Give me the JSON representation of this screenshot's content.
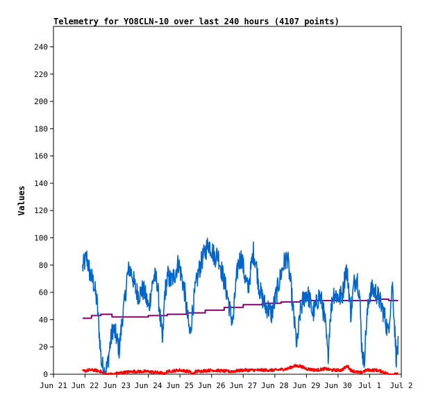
{
  "chart_data": {
    "type": "line",
    "title": "Telemetry for YO8CLN-10 over last 240 hours (4107 points)",
    "xlabel": "",
    "ylabel": "Values",
    "x_ticks": [
      "Jun 21",
      "Jun 22",
      "Jun 23",
      "Jun 24",
      "Jun 25",
      "Jun 26",
      "Jun 27",
      "Jun 28",
      "Jun 29",
      "Jun 30",
      "Jul 1",
      "Jul 2"
    ],
    "xlim_days": [
      0,
      11
    ],
    "y_ticks": [
      0,
      20,
      40,
      60,
      80,
      100,
      120,
      140,
      160,
      180,
      200,
      220,
      240
    ],
    "ylim": [
      0,
      255
    ],
    "grid": false,
    "legend": "none",
    "series": [
      {
        "color": "#0066cc",
        "style": "noisy",
        "points": [
          [
            0.92,
            78
          ],
          [
            1.05,
            86
          ],
          [
            1.15,
            74
          ],
          [
            1.28,
            66
          ],
          [
            1.38,
            52
          ],
          [
            1.45,
            30
          ],
          [
            1.52,
            8
          ],
          [
            1.6,
            2
          ],
          [
            1.7,
            5
          ],
          [
            1.78,
            20
          ],
          [
            1.88,
            34
          ],
          [
            1.98,
            28
          ],
          [
            2.08,
            18
          ],
          [
            2.18,
            42
          ],
          [
            2.25,
            52
          ],
          [
            2.32,
            70
          ],
          [
            2.4,
            78
          ],
          [
            2.5,
            72
          ],
          [
            2.6,
            62
          ],
          [
            2.7,
            58
          ],
          [
            2.8,
            62
          ],
          [
            2.88,
            60
          ],
          [
            2.95,
            54
          ],
          [
            3.02,
            48
          ],
          [
            3.08,
            60
          ],
          [
            3.18,
            72
          ],
          [
            3.28,
            68
          ],
          [
            3.38,
            40
          ],
          [
            3.45,
            22
          ],
          [
            3.52,
            60
          ],
          [
            3.62,
            72
          ],
          [
            3.72,
            68
          ],
          [
            3.85,
            74
          ],
          [
            3.95,
            82
          ],
          [
            4.05,
            72
          ],
          [
            4.15,
            60
          ],
          [
            4.25,
            40
          ],
          [
            4.32,
            28
          ],
          [
            4.4,
            48
          ],
          [
            4.5,
            64
          ],
          [
            4.6,
            76
          ],
          [
            4.7,
            84
          ],
          [
            4.8,
            90
          ],
          [
            4.9,
            96
          ],
          [
            5.0,
            92
          ],
          [
            5.1,
            86
          ],
          [
            5.2,
            88
          ],
          [
            5.3,
            78
          ],
          [
            5.4,
            68
          ],
          [
            5.5,
            58
          ],
          [
            5.6,
            44
          ],
          [
            5.68,
            38
          ],
          [
            5.75,
            62
          ],
          [
            5.85,
            82
          ],
          [
            5.95,
            86
          ],
          [
            6.05,
            72
          ],
          [
            6.15,
            62
          ],
          [
            6.25,
            78
          ],
          [
            6.32,
            90
          ],
          [
            6.4,
            82
          ],
          [
            6.5,
            64
          ],
          [
            6.6,
            56
          ],
          [
            6.7,
            50
          ],
          [
            6.8,
            48
          ],
          [
            6.9,
            44
          ],
          [
            7.0,
            54
          ],
          [
            7.1,
            64
          ],
          [
            7.2,
            74
          ],
          [
            7.3,
            82
          ],
          [
            7.4,
            86
          ],
          [
            7.5,
            66
          ],
          [
            7.6,
            42
          ],
          [
            7.7,
            20
          ],
          [
            7.8,
            45
          ],
          [
            7.9,
            55
          ],
          [
            8.0,
            60
          ],
          [
            8.1,
            55
          ],
          [
            8.2,
            44
          ],
          [
            8.3,
            50
          ],
          [
            8.4,
            58
          ],
          [
            8.5,
            52
          ],
          [
            8.6,
            36
          ],
          [
            8.68,
            12
          ],
          [
            8.75,
            42
          ],
          [
            8.85,
            60
          ],
          [
            8.95,
            58
          ],
          [
            9.05,
            56
          ],
          [
            9.15,
            60
          ],
          [
            9.25,
            78
          ],
          [
            9.32,
            68
          ],
          [
            9.4,
            44
          ],
          [
            9.5,
            66
          ],
          [
            9.6,
            72
          ],
          [
            9.68,
            58
          ],
          [
            9.75,
            20
          ],
          [
            9.82,
            8
          ],
          [
            9.9,
            38
          ],
          [
            10.0,
            60
          ],
          [
            10.1,
            62
          ],
          [
            10.2,
            60
          ],
          [
            10.3,
            55
          ],
          [
            10.4,
            48
          ],
          [
            10.5,
            40
          ],
          [
            10.58,
            30
          ],
          [
            10.65,
            48
          ],
          [
            10.72,
            66
          ],
          [
            10.78,
            38
          ],
          [
            10.84,
            12
          ],
          [
            10.9,
            20
          ]
        ]
      },
      {
        "color": "#800066",
        "style": "step",
        "points": [
          [
            0.92,
            41
          ],
          [
            1.2,
            43
          ],
          [
            1.5,
            44
          ],
          [
            1.85,
            42
          ],
          [
            2.5,
            42
          ],
          [
            3.0,
            43
          ],
          [
            3.6,
            44
          ],
          [
            4.2,
            45
          ],
          [
            4.8,
            47
          ],
          [
            5.4,
            49
          ],
          [
            6.0,
            51
          ],
          [
            6.6,
            52
          ],
          [
            7.2,
            53
          ],
          [
            7.8,
            54
          ],
          [
            8.4,
            54
          ],
          [
            9.0,
            54
          ],
          [
            9.6,
            54
          ],
          [
            10.2,
            55
          ],
          [
            10.6,
            54
          ],
          [
            10.9,
            54
          ]
        ]
      },
      {
        "color": "#ff0000",
        "style": "noisy-low",
        "points": [
          [
            0.92,
            2
          ],
          [
            1.1,
            3
          ],
          [
            1.3,
            3
          ],
          [
            1.5,
            2
          ],
          [
            1.6,
            0
          ],
          [
            1.9,
            0
          ],
          [
            2.1,
            1
          ],
          [
            2.5,
            2
          ],
          [
            3.0,
            2
          ],
          [
            3.4,
            1
          ],
          [
            3.5,
            0
          ],
          [
            3.6,
            2
          ],
          [
            4.0,
            3
          ],
          [
            4.3,
            2
          ],
          [
            4.4,
            0
          ],
          [
            4.5,
            2
          ],
          [
            5.0,
            3
          ],
          [
            5.6,
            2
          ],
          [
            6.0,
            3
          ],
          [
            6.5,
            3
          ],
          [
            7.0,
            3
          ],
          [
            7.4,
            4
          ],
          [
            7.6,
            6
          ],
          [
            7.8,
            6
          ],
          [
            8.0,
            4
          ],
          [
            8.3,
            3
          ],
          [
            8.6,
            4
          ],
          [
            8.8,
            3
          ],
          [
            9.1,
            3
          ],
          [
            9.3,
            6
          ],
          [
            9.4,
            3
          ],
          [
            9.7,
            1
          ],
          [
            9.9,
            3
          ],
          [
            10.2,
            3
          ],
          [
            10.4,
            2
          ],
          [
            10.6,
            0
          ],
          [
            10.9,
            0
          ]
        ]
      }
    ]
  }
}
